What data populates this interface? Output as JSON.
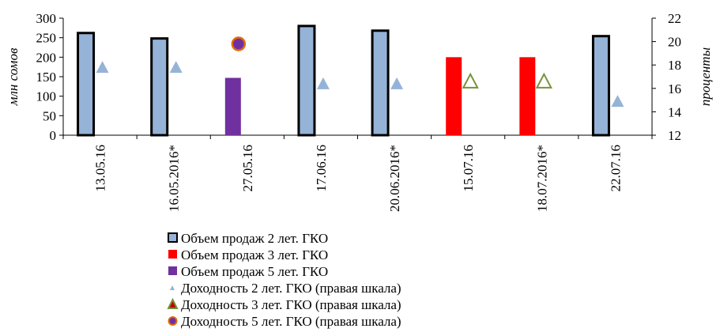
{
  "chart_data": {
    "type": "bar",
    "title": "",
    "ylabel_left": "млн сомов",
    "ylabel_right": "проценты",
    "ylim_left": [
      0,
      300
    ],
    "ylim_right": [
      12,
      22
    ],
    "yticks_left": [
      "0",
      "50",
      "100",
      "150",
      "200",
      "250",
      "300"
    ],
    "yticks_right": [
      "12",
      "14",
      "16",
      "18",
      "20",
      "22"
    ],
    "categories": [
      "13.05.16",
      "16.05.2016*",
      "27.05.16",
      "17.06.16",
      "20.06.2016*",
      "15.07.16",
      "18.07.2016*",
      "22.07.16"
    ],
    "bar_series": [
      {
        "name": "Объем продаж 2 лет. ГКО",
        "values": [
          262,
          248,
          null,
          280,
          268,
          null,
          null,
          254
        ],
        "color": "#95b3d7",
        "stroke": "#000000"
      },
      {
        "name": "Объем продаж 3 лет. ГКО",
        "values": [
          null,
          null,
          null,
          null,
          null,
          200,
          200,
          null
        ],
        "color": "#ff0000",
        "stroke": "none"
      },
      {
        "name": "Объем продаж 5 лет. ГКО",
        "values": [
          null,
          null,
          147,
          null,
          null,
          null,
          null,
          null
        ],
        "color": "#7030a0",
        "stroke": "none"
      }
    ],
    "point_series": [
      {
        "name": "Доходность 2 лет. ГКО (правая шкала)",
        "marker": "triangle",
        "values": [
          17.8,
          17.8,
          null,
          16.4,
          16.4,
          null,
          null,
          14.9
        ],
        "color": "#95b3d7"
      },
      {
        "name": "Доходность 3 лет. ГКО (правая шкала)",
        "marker": "triangle-open",
        "values": [
          null,
          null,
          null,
          null,
          null,
          16.6,
          16.6,
          null
        ],
        "color": "#77933c"
      },
      {
        "name": "Доходность 5 лет. ГКО (правая шкала)",
        "marker": "circle",
        "values": [
          null,
          null,
          19.8,
          null,
          null,
          null,
          null,
          null
        ],
        "color": "#7030a0",
        "stroke": "#e46c0a"
      }
    ],
    "legend_position": "bottom"
  }
}
